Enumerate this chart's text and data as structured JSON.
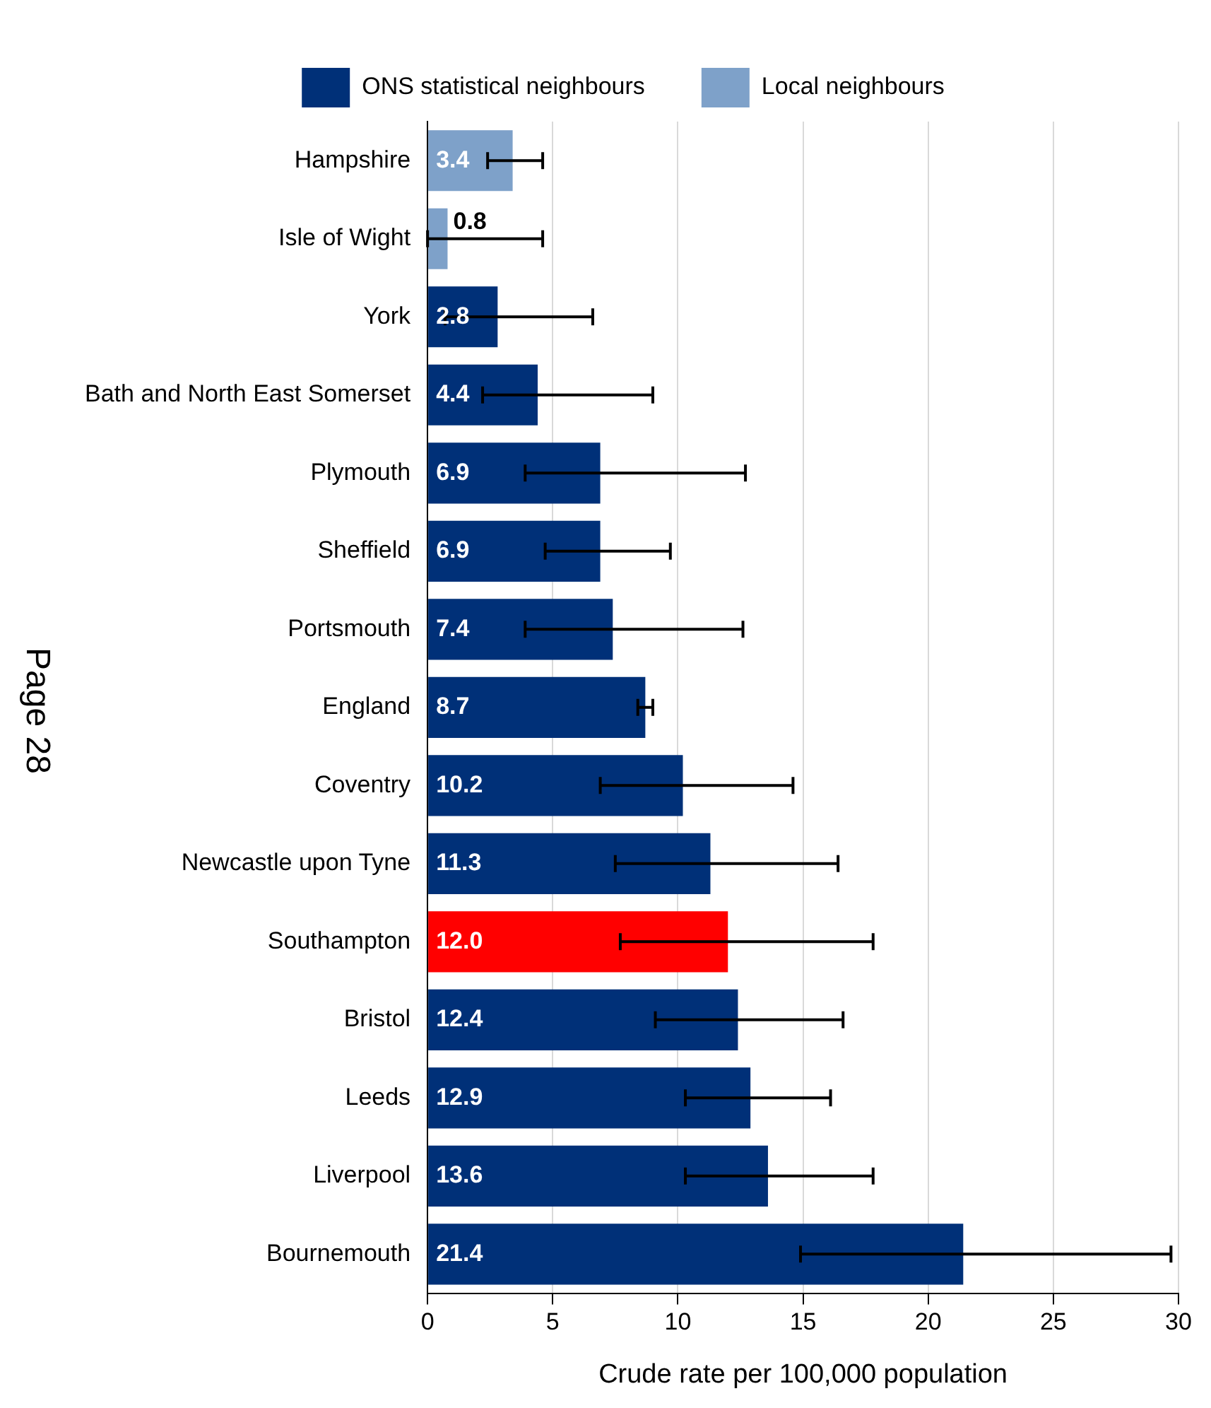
{
  "chart_data": {
    "type": "bar",
    "orientation": "horizontal",
    "xlabel": "Crude rate per 100,000 population",
    "categories": [
      "Hampshire",
      "Isle of Wight",
      "York",
      "Bath and North East Somerset",
      "Plymouth",
      "Sheffield",
      "Portsmouth",
      "England",
      "Coventry",
      "Newcastle upon Tyne",
      "Southampton",
      "Bristol",
      "Leeds",
      "Liverpool",
      "Bournemouth"
    ],
    "series": [
      {
        "name": "ONS statistical neighbours",
        "color": "#003078",
        "values": [
          null,
          null,
          2.8,
          4.4,
          6.9,
          6.9,
          7.4,
          8.7,
          10.2,
          11.3,
          12.0,
          12.4,
          12.9,
          13.6,
          21.4
        ],
        "value_labels": [
          null,
          null,
          "2.8",
          "4.4",
          "6.9",
          "6.9",
          "7.4",
          "8.7",
          "10.2",
          "11.3",
          "12.0",
          "12.4",
          "12.9",
          "13.6",
          "21.4"
        ],
        "colors": [
          null,
          null,
          "#003078",
          "#003078",
          "#003078",
          "#003078",
          "#003078",
          "#003078",
          "#003078",
          "#003078",
          "#ff0000",
          "#003078",
          "#003078",
          "#003078",
          "#003078"
        ],
        "errors": [
          null,
          null,
          [
            0.7,
            6.6
          ],
          [
            2.2,
            9.0
          ],
          [
            3.9,
            12.7
          ],
          [
            4.7,
            9.7
          ],
          [
            3.9,
            12.6
          ],
          [
            8.4,
            9.0
          ],
          [
            6.9,
            14.6
          ],
          [
            7.5,
            16.4
          ],
          [
            7.7,
            17.8
          ],
          [
            9.1,
            16.6
          ],
          [
            10.3,
            16.1
          ],
          [
            10.3,
            17.8
          ],
          [
            14.9,
            29.7
          ]
        ]
      },
      {
        "name": "Local neighbours",
        "color": "#7ea1c9",
        "values": [
          3.4,
          0.8,
          null,
          null,
          null,
          null,
          null,
          null,
          null,
          null,
          null,
          null,
          null,
          null,
          null
        ],
        "value_labels": [
          "3.4",
          "0.8",
          null,
          null,
          null,
          null,
          null,
          null,
          null,
          null,
          null,
          null,
          null,
          null,
          null
        ],
        "errors": [
          [
            2.4,
            4.6
          ],
          [
            0.0,
            4.6
          ],
          null,
          null,
          null,
          null,
          null,
          null,
          null,
          null,
          null,
          null,
          null,
          null,
          null
        ]
      }
    ],
    "xlim": [
      0,
      30
    ],
    "xticks": [
      0,
      5,
      10,
      15,
      20,
      25,
      30
    ],
    "grid": "x",
    "legend": "top",
    "annotations": [
      "Page 28"
    ]
  }
}
